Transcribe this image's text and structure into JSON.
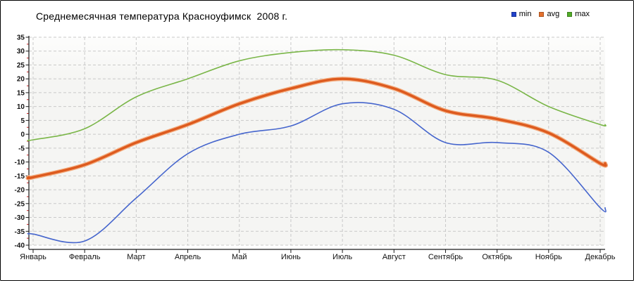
{
  "title": "Среднемесячная температура Красноуфимск  2008 г.",
  "legend": {
    "items": [
      {
        "label": "min",
        "color": "#2243cb"
      },
      {
        "label": "avg",
        "color": "#e4712e"
      },
      {
        "label": "max",
        "color": "#52ac28"
      }
    ]
  },
  "chart_data": {
    "type": "line",
    "title": "Среднемесячная температура Красноуфимск  2008 г.",
    "categories": [
      "Январь",
      "Февраль",
      "Март",
      "Апрель",
      "Май",
      "Июнь",
      "Июль",
      "Август",
      "Сентябрь",
      "Октябрь",
      "Ноябрь",
      "Декабрь"
    ],
    "series": [
      {
        "name": "min",
        "color": "#4565cd",
        "width": 1.6,
        "values": [
          -36,
          -38.5,
          -23,
          -7,
          0,
          3,
          11,
          9,
          -3,
          -3,
          -6.5,
          -26.5
        ]
      },
      {
        "name": "avg",
        "color": "#dd5a1e",
        "halo": "#f3ad80",
        "width": 3.4,
        "values": [
          -15.5,
          -11,
          -3,
          3.5,
          11,
          16.5,
          20,
          16.5,
          8.5,
          5.5,
          0.5,
          -10.5
        ]
      },
      {
        "name": "max",
        "color": "#7ab648",
        "width": 1.6,
        "values": [
          -2,
          2,
          13.5,
          20,
          26.5,
          29.5,
          30.5,
          28.5,
          21.5,
          19.5,
          10,
          3.5
        ]
      }
    ],
    "ylabel": "",
    "xlabel": "",
    "ylim": [
      -40,
      35
    ],
    "ytick_step": 5,
    "grid": true,
    "legend_position": "top-right",
    "units": "°C"
  },
  "colors": {
    "plot_bg": "#f5f5f3",
    "plot_bg_top": "#fdfdfc",
    "grid": "#c9c9c9",
    "axis": "#1a1a1a",
    "major_tick": "#1a1a1a",
    "minor_tick": "#cc2222",
    "tick_label": "#111111",
    "frame_border": "#000000"
  }
}
